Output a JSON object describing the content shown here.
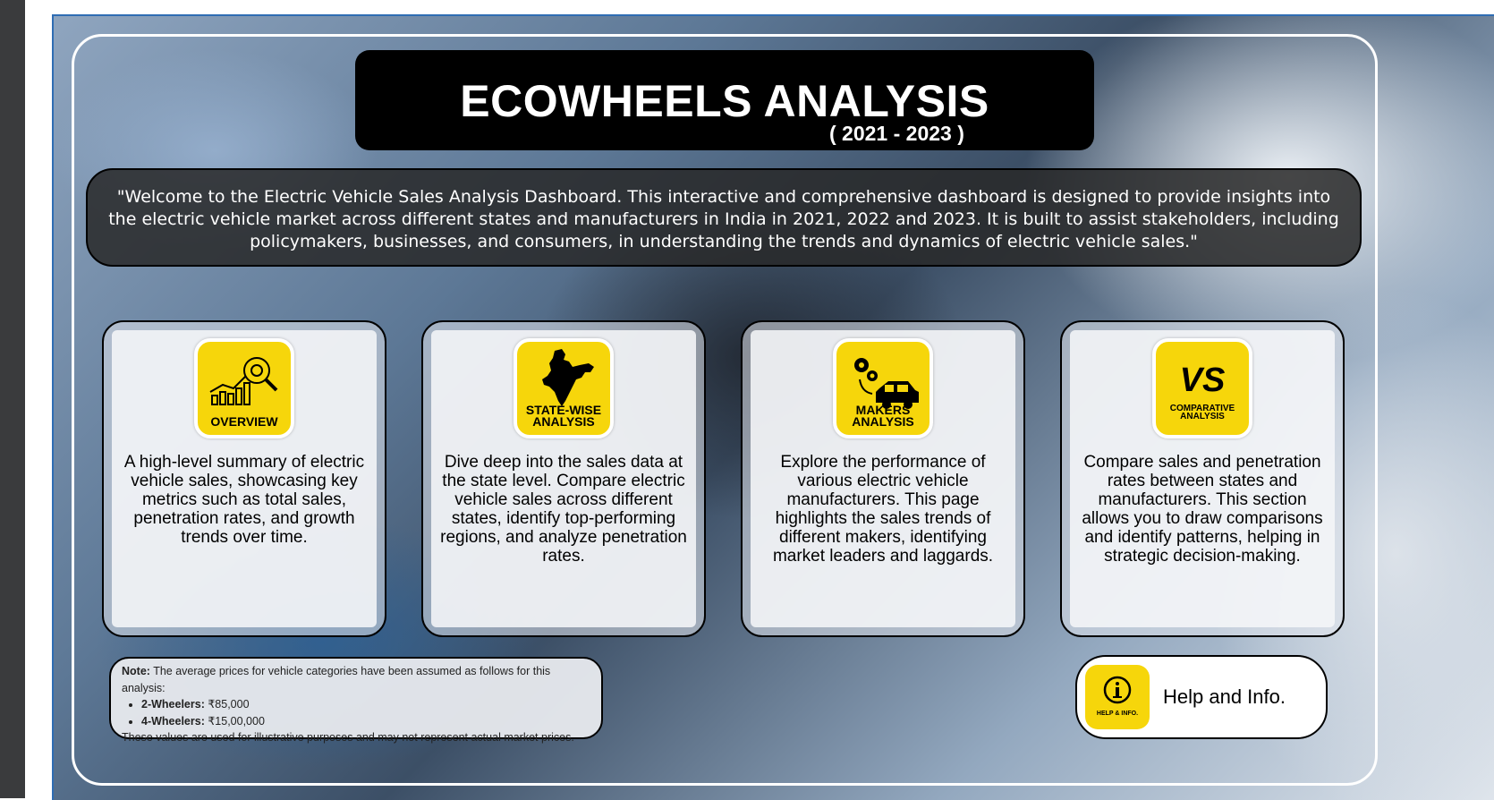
{
  "header": {
    "title": "ECOWHEELS ANALYSIS",
    "years": "( 2021 - 2023 )"
  },
  "welcome_text": "\"Welcome to the Electric Vehicle Sales Analysis Dashboard. This interactive and comprehensive dashboard is designed to provide insights into the electric vehicle market across different states and manufacturers in India in 2021, 2022 and 2023. It is built to assist stakeholders, including policymakers, businesses, and consumers, in understanding the trends and dynamics of electric vehicle sales.\"",
  "cards": [
    {
      "icon": "overview-chart-icon",
      "label": "OVERVIEW",
      "description": "A high-level summary of electric vehicle sales, showcasing key metrics such as total sales, penetration rates, and growth trends over time."
    },
    {
      "icon": "india-map-icon",
      "label": "STATE-WISE ANALYSIS",
      "description": "Dive deep into the sales data at the state level. Compare electric vehicle sales across different states, identify top-performing regions, and analyze penetration rates."
    },
    {
      "icon": "gears-car-icon",
      "label": "MAKERS ANALYSIS",
      "description": "Explore the performance of various electric vehicle manufacturers. This page highlights the sales trends of different makers, identifying market leaders and laggards."
    },
    {
      "icon": "versus-icon",
      "label": "COMPARATIVE ANALYSIS",
      "icon_glyph": "VS",
      "description": "Compare sales and penetration rates between states and manufacturers. This section allows you to draw comparisons and identify patterns, helping in strategic decision-making."
    }
  ],
  "note": {
    "label": "Note:",
    "intro": "The average prices for vehicle categories have been assumed as follows for this analysis:",
    "items": [
      {
        "name": "2-Wheelers:",
        "value": "₹85,000"
      },
      {
        "name": "4-Wheelers:",
        "value": "₹15,00,000"
      }
    ],
    "footer": "These values are used for illustrative purposes and may not represent actual market prices."
  },
  "help": {
    "icon": "info-icon",
    "icon_caption": "HELP & INFO.",
    "label": "Help and Info."
  },
  "colors": {
    "accent_yellow": "#f6d60b",
    "title_bg": "#000000",
    "frame_border": "#2f6db3"
  }
}
